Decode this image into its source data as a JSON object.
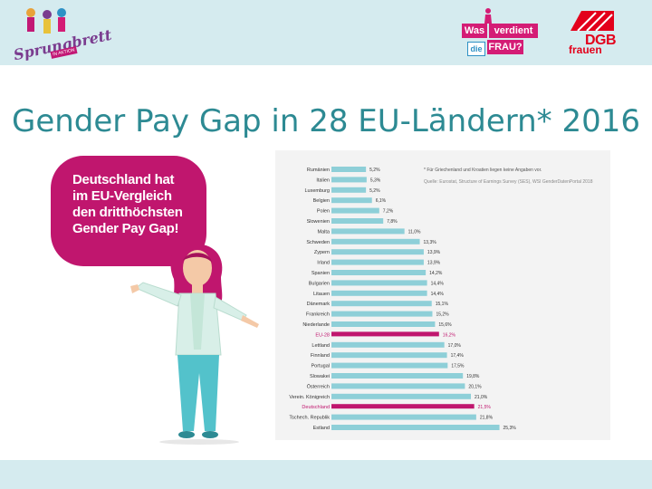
{
  "header": {
    "logo_left": {
      "name": "Sprungbrett",
      "tag": "IN AKTION"
    },
    "logo_mid": {
      "part1": "Was",
      "part2": "verdient",
      "part3": "die",
      "part4": "FRAU",
      "part5": "?"
    },
    "logo_right": {
      "name": "DGB",
      "sub": "frauen"
    }
  },
  "slide": {
    "title": "Gender Pay Gap in 28 EU-Ländern* 2016"
  },
  "bubble": {
    "lines": [
      "Deutschland hat",
      "im EU-Vergleich",
      "den dritthöchsten",
      "Gender Pay Gap!"
    ]
  },
  "chart_data": {
    "type": "bar",
    "orientation": "horizontal",
    "footnote": "* Für Griechenland und Kroatien liegen keine Angaben vor.",
    "source": "Quelle: Eurostat, Structure of Earnings Survey (SES), WSI GenderDatenPortal 2018",
    "categories": [
      "Rumänien",
      "Italien",
      "Luxemburg",
      "Belgien",
      "Polen",
      "Slowenien",
      "Malta",
      "Schweden",
      "Zypern",
      "Irland",
      "Spanien",
      "Bulgarien",
      "Litauen",
      "Dänemark",
      "Frankreich",
      "Niederlande",
      "EU-28",
      "Lettland",
      "Finnland",
      "Portugal",
      "Slowakei",
      "Österreich",
      "Verein. Königreich",
      "Deutschland",
      "Tschech. Republik",
      "Estland"
    ],
    "values": [
      5.2,
      5.3,
      5.2,
      6.1,
      7.2,
      7.8,
      11.0,
      13.3,
      13.9,
      13.9,
      14.2,
      14.4,
      14.4,
      15.1,
      15.2,
      15.6,
      16.2,
      17.0,
      17.4,
      17.5,
      19.8,
      20.1,
      21.0,
      21.5,
      21.8,
      25.3
    ],
    "labels": [
      "5,2%",
      "5,3%",
      "5,2%",
      "6,1%",
      "7,2%",
      "7,8%",
      "11,0%",
      "13,3%",
      "13,9%",
      "13,9%",
      "14,2%",
      "14,4%",
      "14,4%",
      "15,1%",
      "15,2%",
      "15,6%",
      "16,2%",
      "17,0%",
      "17,4%",
      "17,5%",
      "19,8%",
      "20,1%",
      "21,0%",
      "21,5%",
      "21,8%",
      "25,3%"
    ],
    "highlight": [
      "EU-28",
      "Deutschland"
    ],
    "xlim": [
      0,
      30
    ],
    "colors": {
      "bar": "#8ecfd8",
      "highlight": "#c0166e",
      "label": "#333333",
      "highlight_label": "#c0166e"
    }
  },
  "colors": {
    "title": "#2d8a93",
    "band": "#d5ebef",
    "accent": "#c0166e"
  }
}
